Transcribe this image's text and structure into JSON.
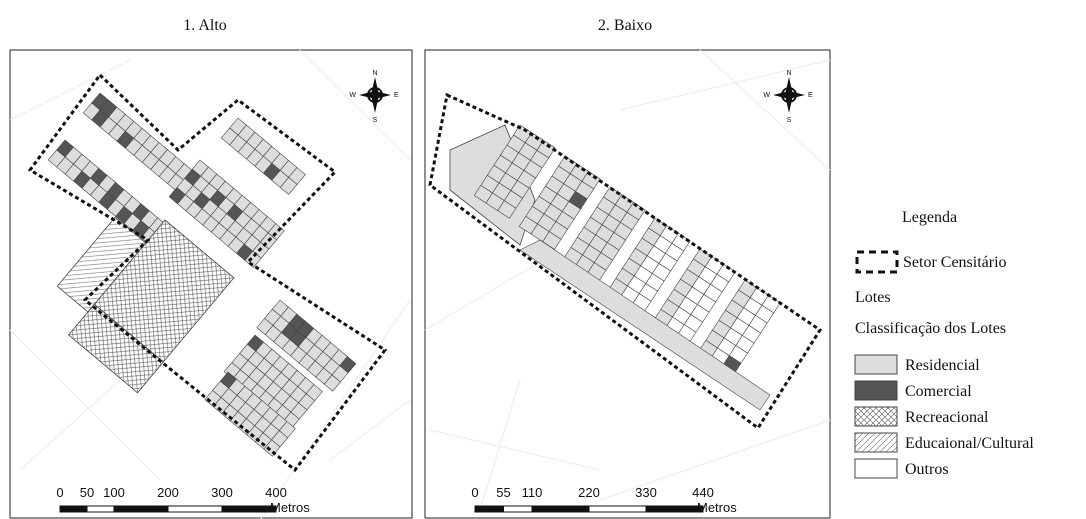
{
  "panels": [
    {
      "title": "1. Alto",
      "compass": {
        "n": "N",
        "s": "S",
        "w": "W",
        "e": "E"
      },
      "scale": {
        "labels": [
          "0",
          "50",
          "100",
          "200",
          "300",
          "400"
        ],
        "unit": "Metros"
      }
    },
    {
      "title": "2. Baixo",
      "compass": {
        "n": "N",
        "s": "S",
        "w": "W",
        "e": "E"
      },
      "scale": {
        "labels": [
          "0",
          "55",
          "110",
          "220",
          "330",
          "440"
        ],
        "unit": "Metros"
      }
    }
  ],
  "legend": {
    "title": "Legenda",
    "sector": "Setor Censitário",
    "lots": "Lotes",
    "classification": "Classificação dos Lotes",
    "items": [
      "Residencial",
      "Comercial",
      "Recreacional",
      "Educaional/Cultural",
      "Outros"
    ]
  }
}
